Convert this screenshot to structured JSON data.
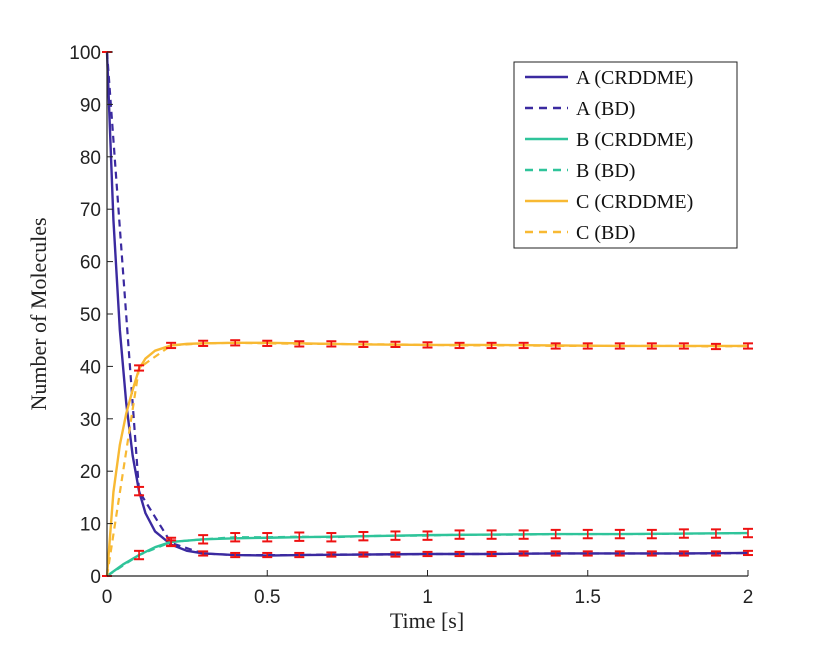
{
  "chart_data": {
    "type": "line",
    "title": "",
    "xlabel": "Time [s]",
    "ylabel": "Number of Molecules",
    "xlim": [
      0,
      2
    ],
    "ylim": [
      0,
      100
    ],
    "x_ticks": [
      0,
      0.5,
      1,
      1.5,
      2
    ],
    "x_tick_labels": [
      "0",
      "0.5",
      "1",
      "1.5",
      "2"
    ],
    "y_ticks": [
      0,
      10,
      20,
      30,
      40,
      50,
      60,
      70,
      80,
      90,
      100
    ],
    "y_tick_labels": [
      "0",
      "10",
      "20",
      "30",
      "40",
      "50",
      "60",
      "70",
      "80",
      "90",
      "100"
    ],
    "grid": false,
    "legend_position": "top-right",
    "series": [
      {
        "name": "A (CRDDME)",
        "color": "#3b2aa0",
        "style": "solid",
        "x": [
          0,
          0.02,
          0.04,
          0.06,
          0.08,
          0.1,
          0.12,
          0.15,
          0.2,
          0.25,
          0.3,
          0.4,
          0.5,
          0.6,
          0.8,
          1.0,
          1.2,
          1.4,
          1.6,
          1.8,
          2.0
        ],
        "y": [
          100,
          68,
          47,
          33,
          23,
          16.2,
          12,
          8.5,
          6.0,
          4.8,
          4.3,
          4.0,
          3.9,
          4.0,
          4.1,
          4.2,
          4.2,
          4.3,
          4.3,
          4.3,
          4.4
        ]
      },
      {
        "name": "A (BD)",
        "color": "#3b2aa0",
        "style": "dashed",
        "x": [
          0,
          0.1,
          0.2,
          0.3,
          0.4,
          0.5,
          0.6,
          0.7,
          0.8,
          0.9,
          1.0,
          1.1,
          1.2,
          1.3,
          1.4,
          1.5,
          1.6,
          1.7,
          1.8,
          1.9,
          2.0
        ],
        "y": [
          100,
          16.2,
          6.3,
          4.3,
          4.0,
          4.0,
          4.0,
          4.1,
          4.1,
          4.1,
          4.2,
          4.2,
          4.2,
          4.3,
          4.3,
          4.3,
          4.3,
          4.3,
          4.3,
          4.3,
          4.4
        ],
        "err": [
          0,
          0.8,
          0.5,
          0.4,
          0.4,
          0.4,
          0.4,
          0.4,
          0.4,
          0.4,
          0.4,
          0.4,
          0.4,
          0.4,
          0.4,
          0.4,
          0.4,
          0.4,
          0.4,
          0.4,
          0.4
        ]
      },
      {
        "name": "B (CRDDME)",
        "color": "#2fc49a",
        "style": "solid",
        "x": [
          0,
          0.05,
          0.1,
          0.15,
          0.2,
          0.3,
          0.4,
          0.5,
          0.6,
          0.8,
          1.0,
          1.2,
          1.4,
          1.6,
          1.8,
          2.0
        ],
        "y": [
          0,
          2.2,
          4.0,
          5.5,
          6.5,
          7.0,
          7.2,
          7.3,
          7.4,
          7.6,
          7.8,
          7.9,
          8.0,
          8.0,
          8.1,
          8.2
        ]
      },
      {
        "name": "B (BD)",
        "color": "#2fc49a",
        "style": "dashed",
        "x": [
          0,
          0.1,
          0.2,
          0.3,
          0.4,
          0.5,
          0.6,
          0.7,
          0.8,
          0.9,
          1.0,
          1.1,
          1.2,
          1.3,
          1.4,
          1.5,
          1.6,
          1.7,
          1.8,
          1.9,
          2.0
        ],
        "y": [
          0,
          4.0,
          6.5,
          7.0,
          7.4,
          7.4,
          7.5,
          7.4,
          7.6,
          7.7,
          7.7,
          7.9,
          7.9,
          7.9,
          8.0,
          8.0,
          8.0,
          8.0,
          8.1,
          8.1,
          8.2
        ],
        "err": [
          0,
          0.8,
          0.8,
          0.8,
          0.8,
          0.8,
          0.8,
          0.8,
          0.8,
          0.8,
          0.8,
          0.8,
          0.8,
          0.8,
          0.8,
          0.8,
          0.8,
          0.8,
          0.8,
          0.8,
          0.8
        ]
      },
      {
        "name": "C (CRDDME)",
        "color": "#f8b933",
        "style": "solid",
        "x": [
          0,
          0.02,
          0.04,
          0.06,
          0.08,
          0.1,
          0.12,
          0.15,
          0.2,
          0.25,
          0.3,
          0.4,
          0.5,
          0.6,
          0.8,
          1.0,
          1.2,
          1.4,
          1.6,
          1.8,
          2.0
        ],
        "y": [
          0,
          16,
          25,
          31,
          35.5,
          39.5,
          41.5,
          43.0,
          44.0,
          44.3,
          44.4,
          44.5,
          44.5,
          44.4,
          44.2,
          44.1,
          44.1,
          44.0,
          43.9,
          43.9,
          43.9
        ]
      },
      {
        "name": "C (BD)",
        "color": "#f8b933",
        "style": "dashed",
        "x": [
          0,
          0.1,
          0.2,
          0.3,
          0.4,
          0.5,
          0.6,
          0.7,
          0.8,
          0.9,
          1.0,
          1.1,
          1.2,
          1.3,
          1.4,
          1.5,
          1.6,
          1.7,
          1.8,
          1.9,
          2.0
        ],
        "y": [
          0,
          39.7,
          44.0,
          44.4,
          44.5,
          44.4,
          44.3,
          44.3,
          44.2,
          44.2,
          44.1,
          44.0,
          44.0,
          44.0,
          43.9,
          43.9,
          43.9,
          43.9,
          43.9,
          43.8,
          43.9
        ],
        "err": [
          0,
          0.5,
          0.5,
          0.5,
          0.5,
          0.5,
          0.5,
          0.5,
          0.5,
          0.5,
          0.5,
          0.5,
          0.5,
          0.5,
          0.5,
          0.5,
          0.5,
          0.5,
          0.5,
          0.5,
          0.5
        ]
      }
    ],
    "error_bar_color": "#ee1111"
  }
}
